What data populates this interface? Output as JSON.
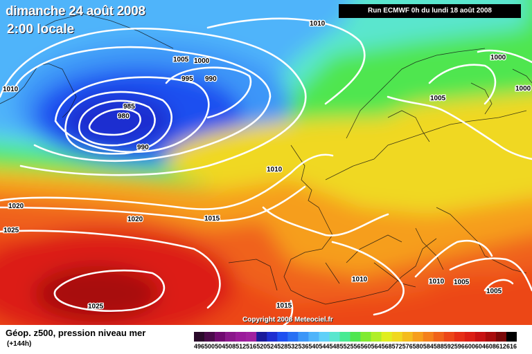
{
  "header": {
    "date": "dimanche 24 août 2008",
    "time": "2:00 locale",
    "run": "Run ECMWF 0h du lundi 18 août 2008"
  },
  "isobars": [
    {
      "label": "1010"
    },
    {
      "label": "1005"
    },
    {
      "label": "1000"
    },
    {
      "label": "995"
    },
    {
      "label": "990"
    },
    {
      "label": "985"
    },
    {
      "label": "980"
    },
    {
      "label": "990"
    },
    {
      "label": "1010"
    },
    {
      "label": "1010"
    },
    {
      "label": "1020"
    },
    {
      "label": "1025"
    },
    {
      "label": "1020"
    },
    {
      "label": "1015"
    },
    {
      "label": "1025"
    },
    {
      "label": "1015"
    },
    {
      "label": "1010"
    },
    {
      "label": "1010"
    },
    {
      "label": "1005"
    },
    {
      "label": "1005"
    },
    {
      "label": "1005"
    },
    {
      "label": "1000"
    },
    {
      "label": "1000"
    }
  ],
  "copyright": "Copyright 2008 Meteociel.fr",
  "footer": {
    "title": "Géop. z500, pression niveau mer",
    "subtitle": "(+144h)"
  },
  "scale": {
    "values": [
      "496",
      "500",
      "504",
      "508",
      "512",
      "516",
      "520",
      "524",
      "528",
      "532",
      "536",
      "540",
      "544",
      "548",
      "552",
      "556",
      "560",
      "564",
      "568",
      "572",
      "576",
      "580",
      "584",
      "588",
      "592",
      "596",
      "600",
      "604",
      "608",
      "612",
      "616"
    ],
    "colors": [
      "#2a0a2a",
      "#4a0a4a",
      "#700a70",
      "#8a168a",
      "#9a1a9a",
      "#a020a0",
      "#1a1a9a",
      "#1e2ed0",
      "#1e50f0",
      "#2870f4",
      "#3c96f8",
      "#50b4fa",
      "#60d0f8",
      "#5ae6ce",
      "#48ea92",
      "#50e650",
      "#80ea30",
      "#b0ee28",
      "#e0ee20",
      "#f0d820",
      "#f4bc1e",
      "#f69e1c",
      "#f4801c",
      "#f0621a",
      "#ec4618",
      "#e62e16",
      "#dc1e14",
      "#c81212",
      "#a80c0c",
      "#7a0808",
      "#000000"
    ]
  }
}
